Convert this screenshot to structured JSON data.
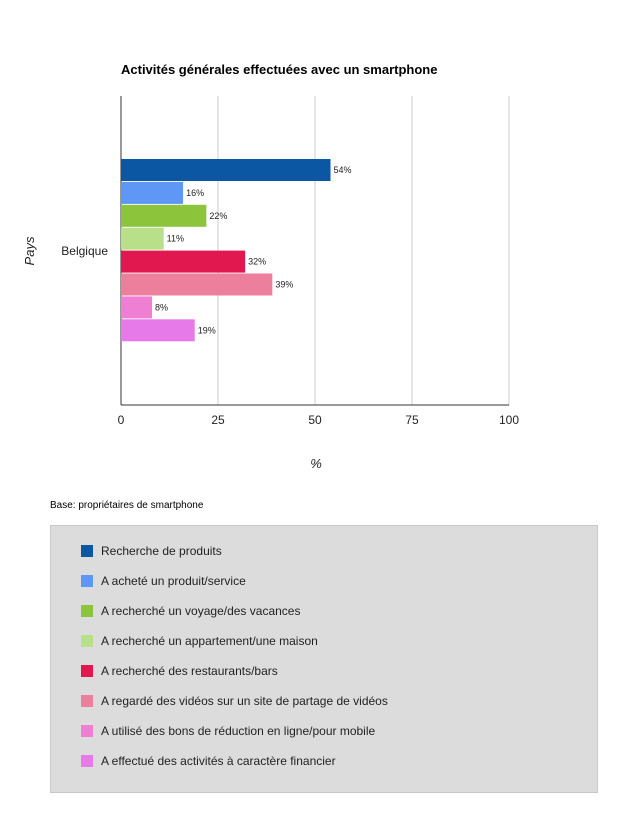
{
  "chart_data": {
    "type": "bar",
    "orientation": "horizontal",
    "title": "Activités générales effectuées avec un smartphone",
    "xlabel": "%",
    "ylabel": "Pays",
    "categories": [
      "Belgique"
    ],
    "xlim": [
      0,
      100
    ],
    "xticks": [
      0,
      25,
      50,
      75,
      100
    ],
    "grid": true,
    "legend_placement": "bottom",
    "series": [
      {
        "name": "Recherche de produits",
        "values": [
          54
        ],
        "label": "54%",
        "color": "#0b57a4"
      },
      {
        "name": "A acheté un produit/service",
        "values": [
          16
        ],
        "label": "16%",
        "color": "#5e97f6"
      },
      {
        "name": "A recherché un voyage/des vacances",
        "values": [
          22
        ],
        "label": "22%",
        "color": "#8cc43c"
      },
      {
        "name": "A recherché un appartement/une maison",
        "values": [
          11
        ],
        "label": "11%",
        "color": "#b7e089"
      },
      {
        "name": "A recherché des restaurants/bars",
        "values": [
          32
        ],
        "label": "32%",
        "color": "#e0184f"
      },
      {
        "name": "A regardé des vidéos sur un site de partage de vidéos",
        "values": [
          39
        ],
        "label": "39%",
        "color": "#ec7f9b"
      },
      {
        "name": "A utilisé des bons de réduction en ligne/pour mobile",
        "values": [
          8
        ],
        "label": "8%",
        "color": "#ee7fd2"
      },
      {
        "name": "A effectué des activités à caractère financier",
        "values": [
          19
        ],
        "label": "19%",
        "color": "#e57ae8"
      }
    ]
  },
  "base_note": "Base: propriétaires de smartphone"
}
